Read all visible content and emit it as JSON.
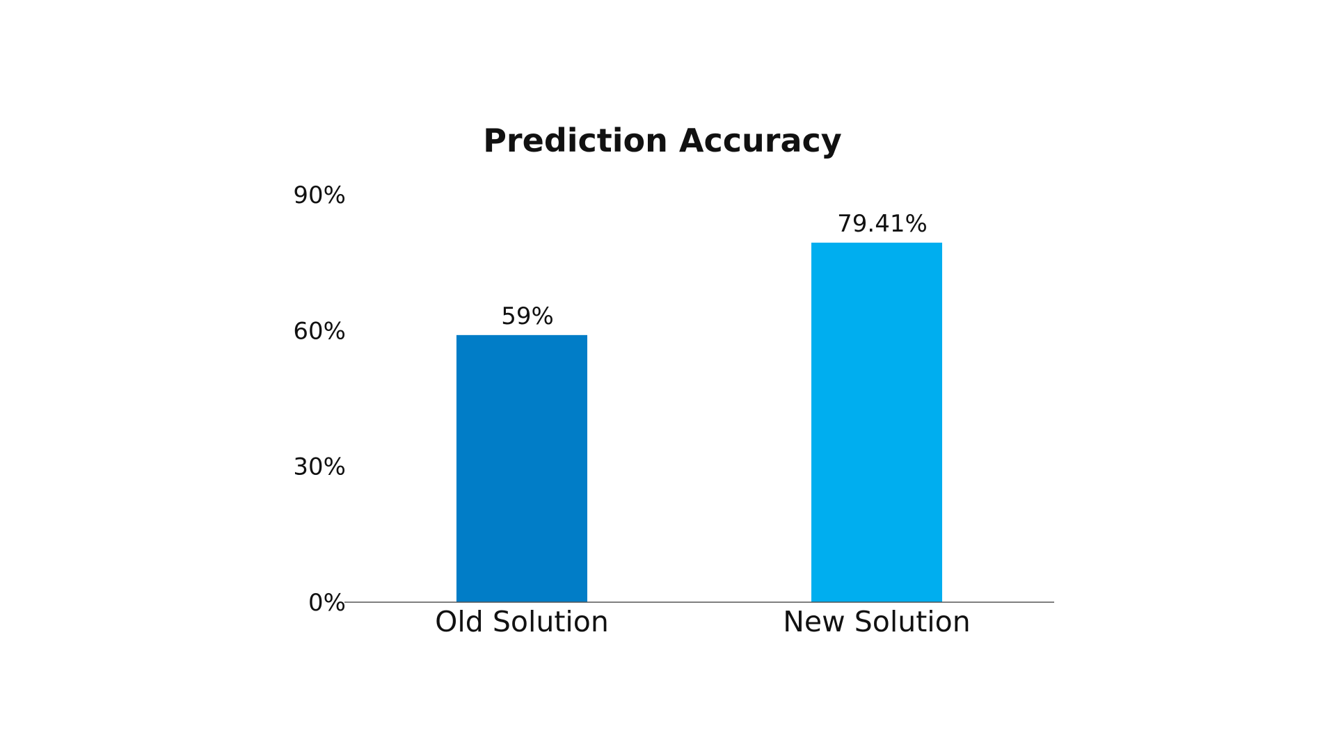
{
  "chart_data": {
    "type": "bar",
    "title": "Prediction Accuracy",
    "xlabel": "",
    "ylabel": "",
    "categories": [
      "Old Solution",
      "New Solution"
    ],
    "values": [
      59,
      79.41
    ],
    "data_labels": [
      "59%",
      "79.41%"
    ],
    "colors": [
      "#017dc7",
      "#00aeef"
    ],
    "ylim": [
      0,
      90
    ],
    "yticks": [
      0,
      30,
      60,
      90
    ],
    "ytick_labels": [
      "0%",
      "30%",
      "60%",
      "90%"
    ],
    "grid": false,
    "legend": "none"
  }
}
